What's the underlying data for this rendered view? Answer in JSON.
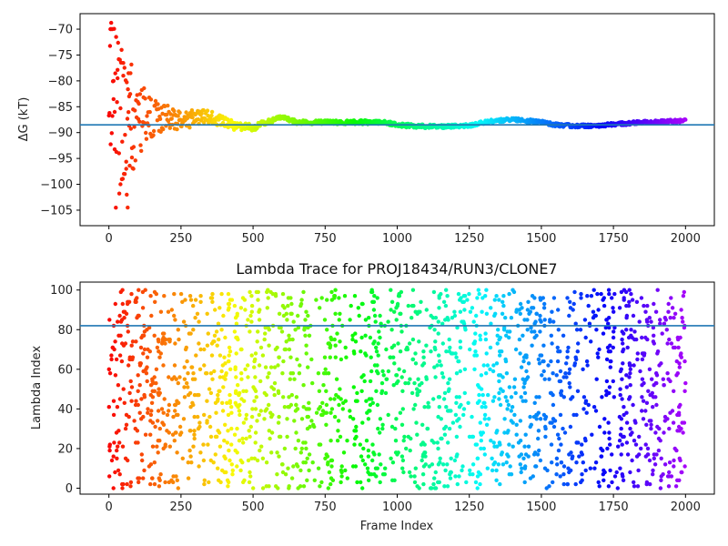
{
  "chart_data": [
    {
      "type": "scatter",
      "title": "",
      "xlabel": "",
      "ylabel": "ΔG (kT)",
      "xlim": [
        -100,
        2100
      ],
      "ylim": [
        -108,
        -67
      ],
      "xticks": [
        0,
        250,
        500,
        750,
        1000,
        1250,
        1500,
        1750,
        2000
      ],
      "xtick_labels": [
        "0",
        "250",
        "500",
        "750",
        "1000",
        "1250",
        "1500",
        "1750",
        "2000"
      ],
      "yticks": [
        -70,
        -75,
        -80,
        -85,
        -90,
        -95,
        -100,
        -105
      ],
      "ytick_labels": [
        "−70",
        "−75",
        "−80",
        "−85",
        "−90",
        "−95",
        "−100",
        "−105"
      ],
      "hline": -88.5,
      "colormap": "rainbow (red at frame 0 → violet at frame 2000)",
      "trace_anchors": {
        "x": [
          0,
          20,
          40,
          60,
          80,
          100,
          130,
          160,
          200,
          250,
          300,
          350,
          400,
          450,
          500,
          550,
          600,
          650,
          700,
          750,
          800,
          850,
          900,
          950,
          1000,
          1050,
          1100,
          1150,
          1200,
          1250,
          1300,
          1350,
          1400,
          1450,
          1500,
          1550,
          1600,
          1650,
          1700,
          1750,
          1800,
          1850,
          1900,
          1950,
          2000
        ],
        "y": [
          -88,
          -87,
          -88,
          -87,
          -87,
          -87,
          -87,
          -87,
          -87,
          -88,
          -87,
          -87,
          -88,
          -89,
          -89,
          -88,
          -87,
          -88,
          -88,
          -88,
          -88,
          -88,
          -88,
          -88,
          -88.5,
          -88.7,
          -88.8,
          -88.8,
          -88.7,
          -88.6,
          -88.0,
          -87.6,
          -87.5,
          -87.7,
          -88.0,
          -88.5,
          -88.7,
          -88.7,
          -88.6,
          -88.4,
          -88.2,
          -88.0,
          -87.9,
          -87.8,
          -87.7
        ]
      },
      "spread_anchors": {
        "x": [
          0,
          50,
          100,
          150,
          200,
          300,
          400,
          600,
          2000
        ],
        "spread": [
          20,
          16,
          8,
          4,
          2.5,
          1.5,
          1.0,
          0.4,
          0.3
        ]
      },
      "outliers": {
        "x": [
          5,
          8,
          12,
          16,
          20,
          25,
          30,
          35,
          40,
          45,
          50,
          55,
          60,
          62,
          65,
          68,
          70,
          75,
          80,
          85
        ],
        "y": [
          -70,
          -70,
          -70,
          -80,
          -86,
          -71.5,
          -79.5,
          -94,
          -100,
          -99,
          -79,
          -98,
          -97,
          -102,
          -104.5,
          -78.5,
          -83,
          -78.5,
          -93,
          -97
        ]
      }
    },
    {
      "type": "scatter",
      "title": "Lambda Trace for PROJ18434/RUN3/CLONE7",
      "xlabel": "Frame Index",
      "ylabel": "Lambda Index",
      "xlim": [
        -100,
        2100
      ],
      "ylim": [
        -3,
        104
      ],
      "xticks": [
        0,
        250,
        500,
        750,
        1000,
        1250,
        1500,
        1750,
        2000
      ],
      "xtick_labels": [
        "0",
        "250",
        "500",
        "750",
        "1000",
        "1250",
        "1500",
        "1750",
        "2000"
      ],
      "yticks": [
        0,
        20,
        40,
        60,
        80,
        100
      ],
      "ytick_labels": [
        "0",
        "20",
        "40",
        "60",
        "80",
        "100"
      ],
      "hline": 82,
      "colormap": "rainbow (red at frame 0 → violet at frame 2000)",
      "points": {
        "n": 2000,
        "frame_range": [
          0,
          2000
        ],
        "lambda_range": [
          0,
          100
        ],
        "distribution": "approximately uniform"
      }
    }
  ]
}
